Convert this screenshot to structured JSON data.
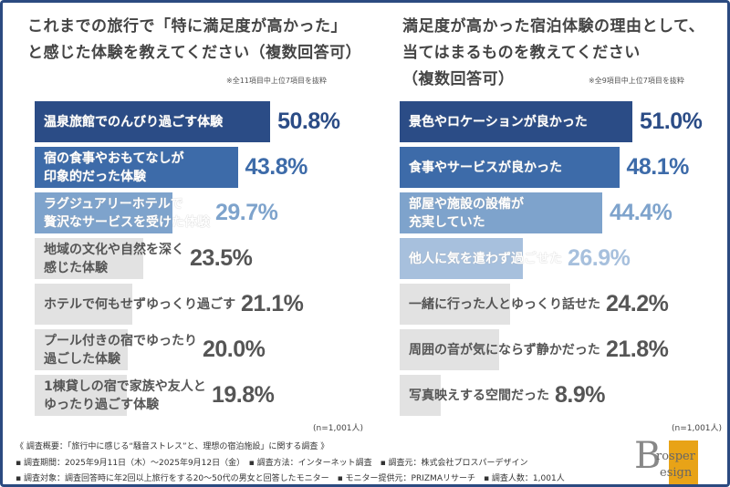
{
  "chart_data": [
    {
      "type": "bar",
      "orientation": "horizontal",
      "title": "これまでの旅行で「特に満足度が高かった」と感じた体験を教えてください（複数回答可）",
      "note": "※全11項目中上位7項目を抜粋",
      "sample": "(n=1,001人)",
      "categories": [
        "温泉旅館でのんびり過ごす体験",
        "宿の食事やおもてなしが\n印象的だった体験",
        "ラグジュアリーホテルで\n贅沢なサービスを受けた体験",
        "地域の文化や自然を深く\n感じた体験",
        "ホテルで何もせずゆっくり過ごす",
        "プール付きの宿でゆったり\n過ごした体験",
        "1棟貸しの宿で家族や友人と\nゆったり過ごす体験"
      ],
      "values": [
        50.8,
        43.8,
        29.7,
        23.5,
        21.1,
        20.0,
        19.8
      ],
      "labels": [
        "50.8%",
        "43.8%",
        "29.7%",
        "23.5%",
        "21.1%",
        "20.0%",
        "19.8%"
      ],
      "bar_colors": [
        "#2b4c86",
        "#3d6ba9",
        "#7ea3cc",
        "#e2e2e2",
        "#e2e2e2",
        "#e2e2e2",
        "#e2e2e2"
      ],
      "label_colors": [
        "#2b4c86",
        "#3d6ba9",
        "#7ea3cc",
        "#555555",
        "#555555",
        "#555555",
        "#555555"
      ],
      "text_colors": [
        "#ffffff",
        "#ffffff",
        "#ffffff",
        "#555555",
        "#555555",
        "#555555",
        "#555555"
      ]
    },
    {
      "type": "bar",
      "orientation": "horizontal",
      "title": "満足度が高かった宿泊体験の理由として、当てはまるものを教えてください（複数回答可）",
      "note": "※全9項目中上位7項目を抜粋",
      "sample": "(n=1,001人)",
      "categories": [
        "景色やロケーションが良かった",
        "食事やサービスが良かった",
        "部屋や施設の設備が\n充実していた",
        "他人に気を遣わず過ごせた",
        "一緒に行った人とゆっくり話せた",
        "周囲の音が気にならず静かだった",
        "写真映えする空間だった"
      ],
      "values": [
        51.0,
        48.1,
        44.4,
        26.9,
        24.2,
        21.8,
        8.9
      ],
      "labels": [
        "51.0%",
        "48.1%",
        "44.4%",
        "26.9%",
        "24.2%",
        "21.8%",
        "8.9%"
      ],
      "bar_colors": [
        "#2b4c86",
        "#3d6ba9",
        "#7ea3cc",
        "#a7c0dd",
        "#e2e2e2",
        "#e2e2e2",
        "#e2e2e2"
      ],
      "label_colors": [
        "#2b4c86",
        "#3d6ba9",
        "#7ea3cc",
        "#a7c0dd",
        "#555555",
        "#555555",
        "#555555"
      ],
      "text_colors": [
        "#ffffff",
        "#ffffff",
        "#ffffff",
        "#ffffff",
        "#555555",
        "#555555",
        "#555555"
      ]
    }
  ],
  "titles": {
    "left1": "これまでの旅行で「特に満足度が高かった」",
    "left2": "と感じた体験を教えてください（複数回答可）",
    "right1": "満足度が高かった宿泊体験の理由として、",
    "right2": "当てはまるものを教えてください",
    "right3": "（複数回答可）"
  },
  "footer": {
    "line1": "《 調査概要：「旅行中に感じる“騒音ストレス”と、理想の宿泊施設」に関する調査 》",
    "line2": "▪ 調査期間：2025年9月11日（木）～2025年9月12日（金）　▪ 調査方法：インターネット調査　▪ 調査元：株式会社プロスパーデザイン",
    "line3": "▪ 調査対象：調査回答時に年2回以上旅行をする20～50代の男女と回答したモニター　▪ モニター提供元：PRIZMAリサーチ　▪ 調査人数：1,001人"
  },
  "logo": {
    "text1": "rosper",
    "text2": "esign",
    "accent": "#e8a317"
  }
}
